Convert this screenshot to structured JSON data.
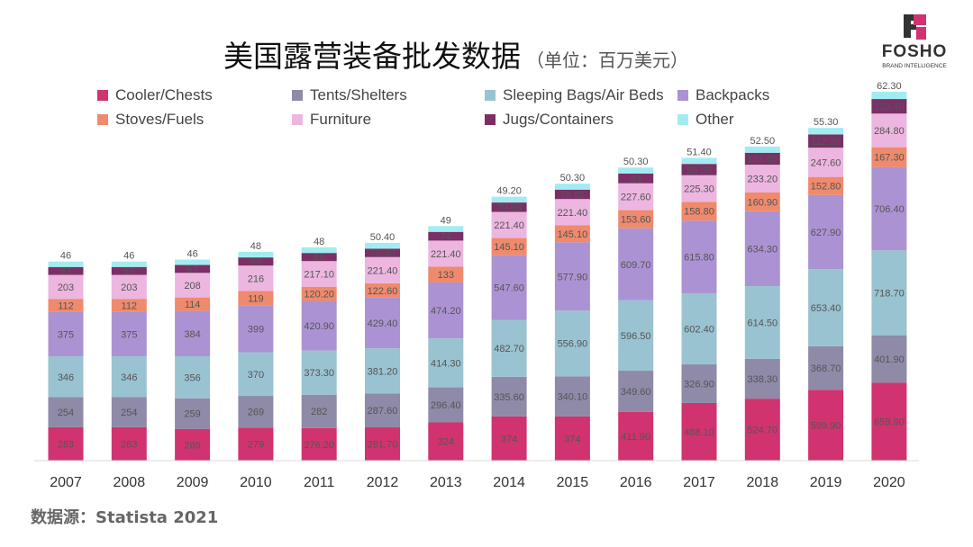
{
  "title": "美国露营装备批发数据",
  "subtitle": "（单位：百万美元）",
  "source": "数据源：Statista 2021",
  "logo": {
    "text": "FOSHO",
    "tagline": "BRAND INTELLIGENCE"
  },
  "chart_data": {
    "type": "bar",
    "stacked": true,
    "categories": [
      "2007",
      "2008",
      "2009",
      "2010",
      "2011",
      "2012",
      "2013",
      "2014",
      "2015",
      "2016",
      "2017",
      "2018",
      "2019",
      "2020"
    ],
    "ylim": [
      0,
      3200
    ],
    "grid": false,
    "legend_position": "top",
    "series": [
      {
        "name": "Cooler/Chests",
        "color": "#d0336f",
        "values": [
          283,
          283,
          269,
          279,
          276.2,
          281.7,
          324,
          374,
          374,
          411.9,
          488.1,
          524.7,
          599.9,
          659.9
        ]
      },
      {
        "name": "Tents/Shelters",
        "color": "#8e8aa8",
        "values": [
          254,
          254,
          259,
          269,
          282,
          287.6,
          296.4,
          335.6,
          340.1,
          349.6,
          326.9,
          338.3,
          368.7,
          401.9
        ]
      },
      {
        "name": "Sleeping Bags/Air Beds",
        "color": "#99c3d1",
        "values": [
          346,
          346,
          356,
          370,
          373.3,
          381.2,
          414.3,
          482.7,
          556.9,
          596.5,
          602.4,
          614.5,
          653.4,
          718.7
        ]
      },
      {
        "name": "Backpacks",
        "color": "#ab93d3",
        "values": [
          375,
          375,
          384,
          399,
          420.9,
          429.4,
          474.2,
          547.6,
          577.9,
          609.7,
          615.8,
          634.3,
          627.9,
          706.4
        ]
      },
      {
        "name": "Stoves/Fuels",
        "color": "#ef8a6c",
        "values": [
          112,
          112,
          114,
          119,
          120.2,
          122.6,
          133,
          145.1,
          145.1,
          153.6,
          158.8,
          160.9,
          152.8,
          167.3
        ]
      },
      {
        "name": "Furniture",
        "color": "#ecb6e0",
        "values": [
          203,
          203,
          208,
          216,
          217.1,
          221.4,
          221.4,
          221.4,
          221.4,
          227.6,
          225.3,
          233.2,
          247.6,
          284.8
        ]
      },
      {
        "name": "Jugs/Containers",
        "color": "#7b2f66",
        "values": [
          67,
          67,
          67,
          69,
          69,
          70.4,
          74,
          79.6,
          79.6,
          83,
          95.5,
          101.4,
          112.2,
          123.4
        ]
      },
      {
        "name": "Other",
        "color": "#a2ecf1",
        "values": [
          46,
          46,
          46,
          48,
          48,
          50.4,
          49,
          49.2,
          50.3,
          50.3,
          51.4,
          52.5,
          55.3,
          62.3
        ]
      }
    ],
    "legend_order": [
      0,
      1,
      2,
      3,
      4,
      5,
      6,
      7
    ]
  }
}
